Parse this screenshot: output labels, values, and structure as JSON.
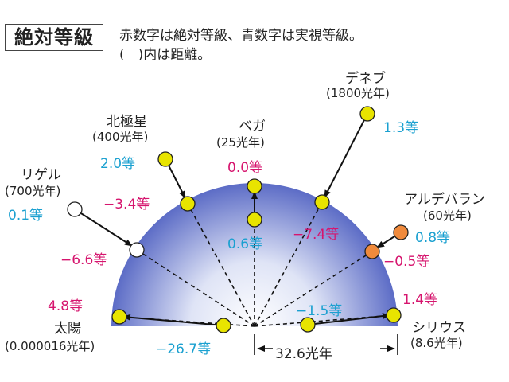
{
  "title": "絶対等級",
  "legend_line1": "赤数字は絶対等級、青数字は実視等級。",
  "legend_line2": "(　)内は距離。",
  "scale_label": "32.6光年",
  "colors": {
    "absolute": "#d6156e",
    "apparent": "#1aa0d0",
    "yellow_star": "#e8e400",
    "orange_star": "#f08a3c",
    "white_star": "#ffffff"
  },
  "stars": {
    "deneb": {
      "name": "デネブ",
      "distance": "(1800光年)",
      "apparent": "1.3等",
      "absolute": "−7.4等"
    },
    "polaris": {
      "name": "北極星",
      "distance": "(400光年)",
      "apparent": "2.0等",
      "absolute": "−3.4等"
    },
    "vega": {
      "name": "ベガ",
      "distance": "(25光年)",
      "apparent": "0.6等",
      "absolute": "0.0等"
    },
    "rigel": {
      "name": "リゲル",
      "distance": "(700光年)",
      "apparent": "0.1等",
      "absolute": "−6.6等"
    },
    "aldebaran": {
      "name": "アルデバラン",
      "distance": "(60光年)",
      "apparent": "0.8等",
      "absolute": "−0.5等"
    },
    "sun": {
      "name": "太陽",
      "distance": "(0.000016光年)",
      "apparent": "−26.7等",
      "absolute": "4.8等"
    },
    "sirius": {
      "name": "シリウス",
      "distance": "(8.6光年)",
      "apparent": "−1.5等",
      "absolute": "1.4等"
    }
  }
}
